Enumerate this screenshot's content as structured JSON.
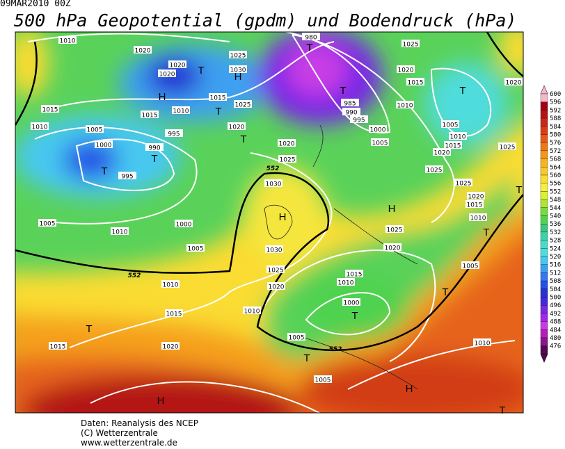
{
  "header": {
    "timestamp": "09MAR2010 00Z",
    "title": "500 hPa Geopotential (gpdm) und Bodendruck (hPa)"
  },
  "map": {
    "isobar_labels": [
      1010,
      1020,
      1020,
      1020,
      1025,
      1030,
      1015,
      1025,
      1020,
      1015,
      1015,
      1010,
      1010,
      1005,
      995,
      1000,
      990,
      995,
      1020,
      1025,
      1030,
      1005,
      1010,
      1000,
      1005,
      1030,
      1025,
      1020,
      1010,
      1010,
      1015,
      1015,
      1020,
      1005,
      1005,
      980,
      985,
      990,
      995,
      1000,
      1005,
      1010,
      1015,
      1020,
      1025,
      1020,
      1005,
      1010,
      1015,
      1020,
      1025,
      1025,
      1025,
      1020,
      1015,
      1010,
      1025,
      1020,
      1015,
      1010,
      1000,
      1005,
      1010
    ],
    "height_labels": [
      552,
      552,
      552
    ],
    "pressure_centers": [
      "H",
      "H",
      "H",
      "H",
      "H",
      "H",
      "T",
      "T",
      "T",
      "T",
      "T",
      "T",
      "T",
      "T",
      "T",
      "T",
      "T",
      "T",
      "T",
      "T",
      "T",
      "T"
    ]
  },
  "colorbar": {
    "ticks": [
      600,
      596,
      592,
      588,
      584,
      580,
      576,
      572,
      568,
      564,
      560,
      556,
      552,
      548,
      544,
      540,
      536,
      532,
      528,
      524,
      520,
      516,
      512,
      508,
      504,
      500,
      496,
      492,
      488,
      484,
      480,
      476
    ],
    "colors": [
      "#f4b8c8",
      "#a00018",
      "#b41414",
      "#c82818",
      "#dc3c14",
      "#e65a14",
      "#f07814",
      "#f59619",
      "#f8b41e",
      "#fac828",
      "#fadc32",
      "#f5f03c",
      "#dcf032",
      "#aae632",
      "#78dc3c",
      "#50d250",
      "#3cc878",
      "#3cd2aa",
      "#46dcc8",
      "#50dcdc",
      "#46c8f0",
      "#3ca0f0",
      "#3278f0",
      "#2850e6",
      "#2832d2",
      "#4628dc",
      "#7828e6",
      "#a028e6",
      "#c83ce6",
      "#b41eb4",
      "#8c148c",
      "#500a50"
    ]
  },
  "footer": {
    "lines": [
      "Daten: Reanalysis des NCEP",
      "(C) Wetterzentrale",
      "www.wetterzentrale.de"
    ]
  }
}
